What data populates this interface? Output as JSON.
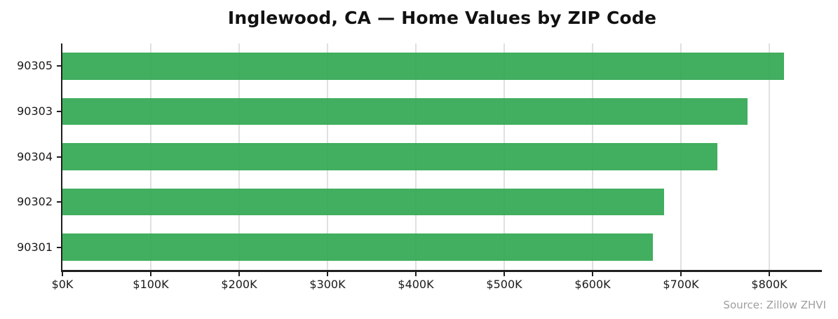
{
  "source": "Source: Zillow ZHVI",
  "colors": {
    "bar": "#34a853",
    "bar_opacity": 0.93,
    "grid": "#e0e0e0",
    "axis": "#1f1f1f",
    "tick_text": "#1a1a1a",
    "source_text": "#9e9e9e"
  },
  "chart_data": {
    "type": "bar",
    "orientation": "horizontal",
    "title": "Inglewood, CA — Home Values by ZIP Code",
    "xlabel": "",
    "ylabel": "",
    "categories": [
      "90305",
      "90303",
      "90304",
      "90302",
      "90301"
    ],
    "values": [
      817000,
      775000,
      741000,
      681000,
      668000
    ],
    "value_unit": "USD (ZHVI home value)",
    "xlim": [
      0,
      859500
    ],
    "x_ticks": [
      {
        "value": 0,
        "label": "$0K"
      },
      {
        "value": 100000,
        "label": "$100K"
      },
      {
        "value": 200000,
        "label": "$200K"
      },
      {
        "value": 300000,
        "label": "$300K"
      },
      {
        "value": 400000,
        "label": "$400K"
      },
      {
        "value": 500000,
        "label": "$500K"
      },
      {
        "value": 600000,
        "label": "$600K"
      },
      {
        "value": 700000,
        "label": "$700K"
      },
      {
        "value": 800000,
        "label": "$800K"
      }
    ],
    "grid": "vertical-only",
    "legend": "none",
    "bar_height_ratio": 0.6,
    "annotation": "Source: Zillow ZHVI"
  }
}
